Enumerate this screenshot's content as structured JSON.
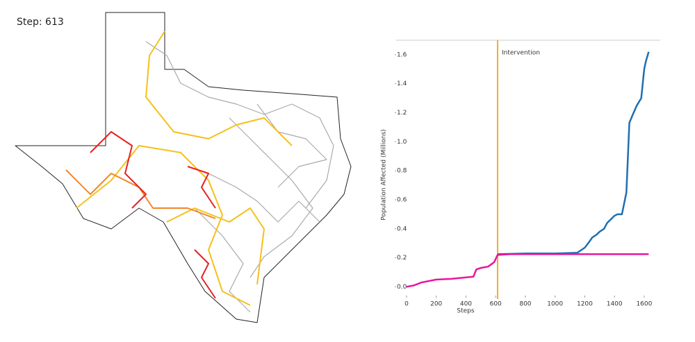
{
  "step_label": "Step: 613",
  "chart_data": {
    "type": "line",
    "xlabel": "Steps",
    "ylabel": "Population Affected (Millions)",
    "annotation": {
      "text": "Intervention",
      "x": 613,
      "color": "#f2b01e"
    },
    "xlim": [
      -70,
      1708
    ],
    "ylim": [
      -0.06,
      1.7
    ],
    "xticks": [
      0,
      200,
      400,
      600,
      800,
      1000,
      1200,
      1400,
      1600
    ],
    "yticks": [
      {
        "value": 0,
        "label": "0.0"
      },
      0.2,
      0.4,
      0.6,
      0.8,
      {
        "value": 1,
        "label": "1.0"
      },
      1.2,
      1.4,
      1.6
    ],
    "series": [
      {
        "color": "#1f6fb0",
        "x": [
          613,
          800,
          1000,
          1150,
          1200,
          1230,
          1250,
          1280,
          1300,
          1330,
          1350,
          1380,
          1400,
          1420,
          1450,
          1480,
          1500,
          1520,
          1550,
          1580,
          1600,
          1610,
          1630
        ],
        "values": [
          0.225,
          0.23,
          0.23,
          0.235,
          0.27,
          0.31,
          0.34,
          0.36,
          0.38,
          0.4,
          0.44,
          0.47,
          0.49,
          0.5,
          0.5,
          0.65,
          1.13,
          1.18,
          1.25,
          1.3,
          1.5,
          1.55,
          1.62
        ]
      },
      {
        "color": "#e8179a",
        "x": [
          0,
          50,
          100,
          150,
          200,
          300,
          400,
          450,
          470,
          500,
          550,
          590,
          613,
          700,
          1000,
          1300,
          1630
        ],
        "values": [
          0.0,
          0.01,
          0.03,
          0.04,
          0.05,
          0.055,
          0.065,
          0.07,
          0.12,
          0.13,
          0.14,
          0.17,
          0.22,
          0.225,
          0.225,
          0.225,
          0.225
        ]
      }
    ]
  }
}
